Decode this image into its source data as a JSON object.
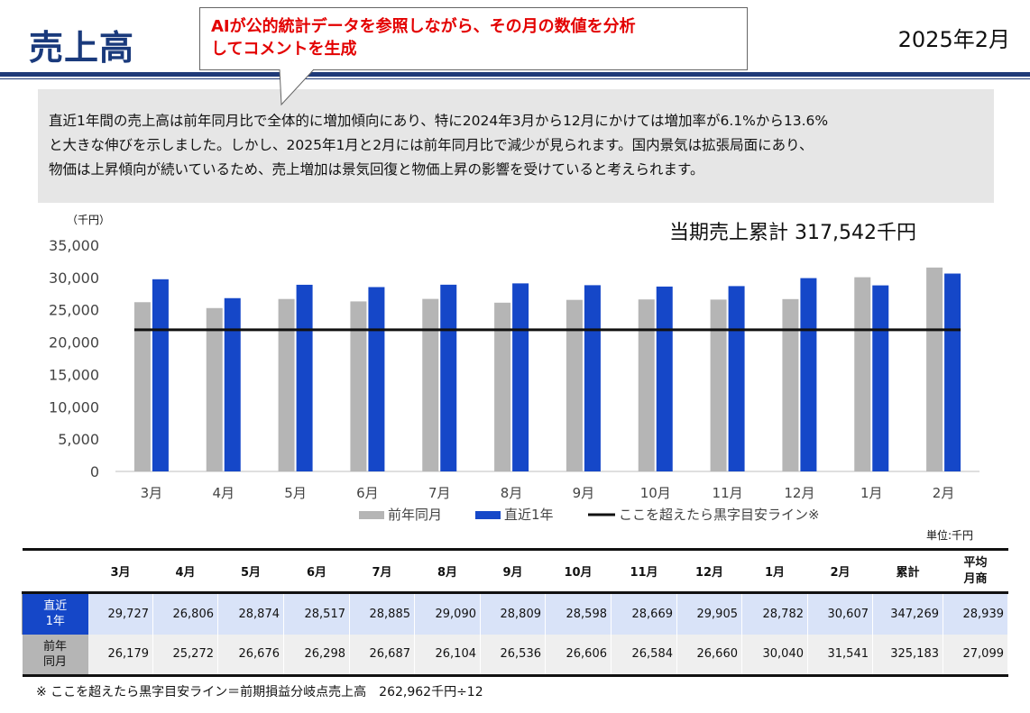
{
  "header": {
    "title": "売上高",
    "period": "2025年2月"
  },
  "callout": {
    "line1": "AIが公的統計データを参照しながら、その月の数値を分析",
    "line2": "してコメントを生成"
  },
  "comment": {
    "line1": "直近1年間の売上高は前年同月比で全体的に増加傾向にあり、特に2024年3月から12月にかけては増加率が6.1%から13.6%",
    "line2": "と大きな伸びを示しました。しかし、2025年1月と2月には前年同月比で減少が見られます。国内景気は拡張局面にあり、",
    "line3": "物価は上昇傾向が続いているため、売上増加は景気回復と物価上昇の影響を受けていると考えられます。"
  },
  "cumulative_label": "当期売上累計 317,542千円",
  "colors": {
    "prior": "#b5b5b5",
    "recent": "#1547c8",
    "line": "#111111",
    "title": "#1a3a7c"
  },
  "chart_data": {
    "type": "bar",
    "unit_label": "（千円）",
    "categories": [
      "3月",
      "4月",
      "5月",
      "6月",
      "7月",
      "8月",
      "9月",
      "10月",
      "11月",
      "12月",
      "1月",
      "2月"
    ],
    "series": [
      {
        "name": "前年同月",
        "values": [
          26179,
          25272,
          26676,
          26298,
          26687,
          26104,
          26536,
          26606,
          26584,
          26660,
          30040,
          31541
        ]
      },
      {
        "name": "直近1年",
        "values": [
          29727,
          26806,
          28874,
          28517,
          28885,
          29090,
          28809,
          28598,
          28669,
          29905,
          28782,
          30607
        ]
      }
    ],
    "reference_line": {
      "name": "ここを超えたら黒字目安ライン※",
      "value": 21914
    },
    "ylim": [
      0,
      35000
    ],
    "yticks": [
      0,
      5000,
      10000,
      15000,
      20000,
      25000,
      30000,
      35000
    ],
    "ytick_labels": [
      "0",
      "5,000",
      "10,000",
      "15,000",
      "20,000",
      "25,000",
      "30,000",
      "35,000"
    ],
    "legend_position": "bottom",
    "grid": false
  },
  "table": {
    "unit": "単位:千円",
    "headers": [
      "3月",
      "4月",
      "5月",
      "6月",
      "7月",
      "8月",
      "9月",
      "10月",
      "11月",
      "12月",
      "1月",
      "2月",
      "累計"
    ],
    "avg_header_line1": "平均",
    "avg_header_line2": "月商",
    "rows": [
      {
        "label_line1": "直近",
        "label_line2": "1年",
        "cells": [
          "29,727",
          "26,806",
          "28,874",
          "28,517",
          "28,885",
          "29,090",
          "28,809",
          "28,598",
          "28,669",
          "29,905",
          "28,782",
          "30,607",
          "347,269",
          "28,939"
        ]
      },
      {
        "label_line1": "前年",
        "label_line2": "同月",
        "cells": [
          "26,179",
          "25,272",
          "26,676",
          "26,298",
          "26,687",
          "26,104",
          "26,536",
          "26,606",
          "26,584",
          "26,660",
          "30,040",
          "31,541",
          "325,183",
          "27,099"
        ]
      }
    ]
  },
  "footnote": "※ ここを超えたら黒字目安ライン＝前期損益分岐点売上高　262,962千円÷12"
}
